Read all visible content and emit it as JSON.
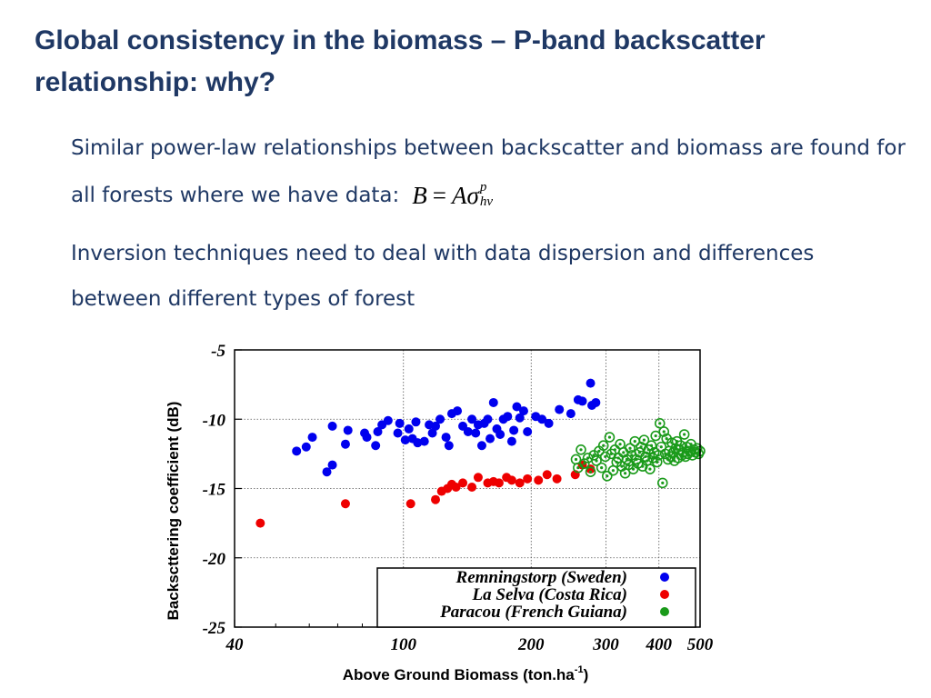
{
  "slide": {
    "title": "Global consistency in the biomass – P-band backscatter relationship: why?",
    "para1": "Similar power-law relationships between backscatter and biomass are found for all forests where we have data:",
    "formula": {
      "lhs": "B",
      "eq": "=",
      "coef": "A",
      "sigma": "σ",
      "sup": "p",
      "sub": "hv"
    },
    "para2": "Inversion techniques need to deal with data dispersion and differences between different types of forest"
  },
  "chart_data": {
    "type": "scatter",
    "title": "",
    "xlabel": "Above Ground Biomass (ton.ha",
    "xlabel_superscript": "-1",
    "xlabel_suffix": ")",
    "ylabel": "Backscttering coefficient (dB)",
    "xscale": "log",
    "xlim": [
      40,
      500
    ],
    "ylim": [
      -25,
      -5
    ],
    "xticks": [
      40,
      100,
      200,
      300,
      400,
      500
    ],
    "yticks": [
      -5,
      -10,
      -15,
      -20,
      -25
    ],
    "grid": true,
    "legend_position": "bottom-right",
    "series": [
      {
        "name": "Remningstorp (Sweden)",
        "color": "#0000ee",
        "marker": "filled",
        "points": [
          [
            56,
            -12.3
          ],
          [
            59,
            -12.0
          ],
          [
            61,
            -11.3
          ],
          [
            66,
            -13.8
          ],
          [
            68,
            -13.3
          ],
          [
            68,
            -10.5
          ],
          [
            73,
            -11.8
          ],
          [
            74,
            -10.8
          ],
          [
            81,
            -11.0
          ],
          [
            82,
            -11.3
          ],
          [
            86,
            -11.9
          ],
          [
            87,
            -10.9
          ],
          [
            89,
            -10.4
          ],
          [
            92,
            -10.1
          ],
          [
            97,
            -11.0
          ],
          [
            98,
            -10.3
          ],
          [
            101,
            -11.5
          ],
          [
            103,
            -10.7
          ],
          [
            105,
            -11.4
          ],
          [
            107,
            -10.2
          ],
          [
            108,
            -11.7
          ],
          [
            112,
            -11.6
          ],
          [
            115,
            -10.4
          ],
          [
            117,
            -11.0
          ],
          [
            119,
            -10.5
          ],
          [
            122,
            -10.0
          ],
          [
            126,
            -11.3
          ],
          [
            128,
            -11.9
          ],
          [
            130,
            -9.6
          ],
          [
            134,
            -9.4
          ],
          [
            138,
            -10.5
          ],
          [
            142,
            -10.9
          ],
          [
            145,
            -10.0
          ],
          [
            148,
            -11.0
          ],
          [
            150,
            -10.4
          ],
          [
            153,
            -11.9
          ],
          [
            155,
            -10.3
          ],
          [
            158,
            -10.0
          ],
          [
            160,
            -11.4
          ],
          [
            163,
            -8.8
          ],
          [
            166,
            -10.7
          ],
          [
            169,
            -11.1
          ],
          [
            172,
            -10.0
          ],
          [
            176,
            -9.8
          ],
          [
            180,
            -11.6
          ],
          [
            182,
            -10.8
          ],
          [
            185,
            -9.1
          ],
          [
            188,
            -9.9
          ],
          [
            192,
            -9.4
          ],
          [
            196,
            -10.9
          ],
          [
            205,
            -9.8
          ],
          [
            212,
            -10.0
          ],
          [
            220,
            -10.3
          ],
          [
            233,
            -9.3
          ],
          [
            248,
            -9.6
          ],
          [
            258,
            -8.6
          ],
          [
            264,
            -8.7
          ],
          [
            276,
            -7.4
          ],
          [
            278,
            -9.0
          ],
          [
            284,
            -8.8
          ]
        ]
      },
      {
        "name": "La Selva (Costa Rica)",
        "color": "#ee0000",
        "marker": "filled",
        "points": [
          [
            46,
            -17.5
          ],
          [
            73,
            -16.1
          ],
          [
            104,
            -16.1
          ],
          [
            119,
            -15.8
          ],
          [
            123,
            -15.2
          ],
          [
            127,
            -15.0
          ],
          [
            130,
            -14.7
          ],
          [
            133,
            -14.9
          ],
          [
            138,
            -14.6
          ],
          [
            145,
            -14.9
          ],
          [
            150,
            -14.2
          ],
          [
            158,
            -14.6
          ],
          [
            163,
            -14.5
          ],
          [
            168,
            -14.6
          ],
          [
            175,
            -14.2
          ],
          [
            180,
            -14.4
          ],
          [
            188,
            -14.6
          ],
          [
            196,
            -14.3
          ],
          [
            208,
            -14.4
          ],
          [
            218,
            -14.0
          ],
          [
            230,
            -14.3
          ],
          [
            254,
            -14.0
          ],
          [
            264,
            -13.3
          ],
          [
            276,
            -13.6
          ]
        ]
      },
      {
        "name": "Paracou (French Guiana)",
        "color": "#1a9a1a",
        "marker": "ring",
        "points": [
          [
            255,
            -12.9
          ],
          [
            258,
            -13.5
          ],
          [
            262,
            -12.2
          ],
          [
            267,
            -13.2
          ],
          [
            272,
            -12.8
          ],
          [
            276,
            -13.8
          ],
          [
            281,
            -12.6
          ],
          [
            285,
            -13.0
          ],
          [
            289,
            -12.3
          ],
          [
            293,
            -13.5
          ],
          [
            296,
            -11.9
          ],
          [
            299,
            -12.7
          ],
          [
            302,
            -14.1
          ],
          [
            306,
            -11.3
          ],
          [
            309,
            -12.5
          ],
          [
            312,
            -13.7
          ],
          [
            315,
            -12.2
          ],
          [
            318,
            -13.1
          ],
          [
            321,
            -12.8
          ],
          [
            324,
            -11.8
          ],
          [
            327,
            -13.4
          ],
          [
            330,
            -12.4
          ],
          [
            333,
            -13.9
          ],
          [
            336,
            -12.9
          ],
          [
            339,
            -13.3
          ],
          [
            342,
            -12.1
          ],
          [
            345,
            -12.6
          ],
          [
            348,
            -13.6
          ],
          [
            351,
            -11.6
          ],
          [
            354,
            -12.9
          ],
          [
            357,
            -13.2
          ],
          [
            360,
            -12.4
          ],
          [
            363,
            -12.0
          ],
          [
            366,
            -13.4
          ],
          [
            369,
            -11.5
          ],
          [
            372,
            -12.7
          ],
          [
            375,
            -13.0
          ],
          [
            378,
            -12.2
          ],
          [
            381,
            -13.6
          ],
          [
            384,
            -11.9
          ],
          [
            387,
            -12.8
          ],
          [
            390,
            -12.4
          ],
          [
            393,
            -11.2
          ],
          [
            396,
            -13.1
          ],
          [
            399,
            -12.6
          ],
          [
            402,
            -10.3
          ],
          [
            405,
            -12.0
          ],
          [
            408,
            -14.6
          ],
          [
            411,
            -10.9
          ],
          [
            414,
            -12.5
          ],
          [
            417,
            -11.4
          ],
          [
            420,
            -12.9
          ],
          [
            423,
            -12.3
          ],
          [
            426,
            -12.7
          ],
          [
            429,
            -11.7
          ],
          [
            432,
            -12.4
          ],
          [
            435,
            -13.0
          ],
          [
            438,
            -12.1
          ],
          [
            441,
            -11.6
          ],
          [
            444,
            -12.8
          ],
          [
            447,
            -12.2
          ],
          [
            450,
            -11.9
          ],
          [
            453,
            -12.6
          ],
          [
            456,
            -12.4
          ],
          [
            459,
            -11.1
          ],
          [
            462,
            -12.7
          ],
          [
            465,
            -12.0
          ],
          [
            468,
            -12.5
          ],
          [
            472,
            -12.3
          ],
          [
            476,
            -11.8
          ],
          [
            480,
            -12.6
          ],
          [
            484,
            -12.2
          ],
          [
            488,
            -12.4
          ],
          [
            492,
            -12.1
          ],
          [
            496,
            -12.5
          ],
          [
            500,
            -12.3
          ]
        ]
      }
    ]
  }
}
